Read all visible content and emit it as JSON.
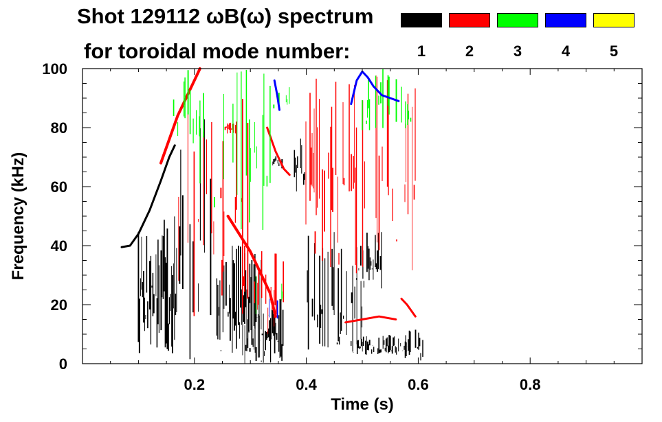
{
  "header": {
    "title_line_1": "Shot 129112 ωB(ω) spectrum",
    "title_line_2": "for toroidal mode number:"
  },
  "legend": [
    {
      "label": "1",
      "color": "#000000"
    },
    {
      "label": "2",
      "color": "#ff0000"
    },
    {
      "label": "3",
      "color": "#00ff00"
    },
    {
      "label": "4",
      "color": "#0000ff"
    },
    {
      "label": "5",
      "color": "#ffff00"
    }
  ],
  "chart_data": {
    "type": "scatter",
    "xlabel": "Time (s)",
    "ylabel": "Frequency (kHz)",
    "xlim": [
      0.0,
      1.0
    ],
    "ylim": [
      0,
      100
    ],
    "x_ticks": [
      0.2,
      0.4,
      0.6,
      0.8
    ],
    "x_tick_labels": [
      "0.2",
      "0.4",
      "0.6",
      "0.8"
    ],
    "y_ticks": [
      0,
      20,
      40,
      60,
      80,
      100
    ],
    "y_tick_labels": [
      "0",
      "20",
      "40",
      "60",
      "80",
      "100"
    ],
    "grid": false,
    "legend_position": "top-right",
    "series": [
      {
        "name": "1",
        "color": "#000000",
        "features": [
          {
            "kind": "trace",
            "width": 3,
            "points": [
              [
                0.07,
                39.5
              ],
              [
                0.085,
                40
              ],
              [
                0.1,
                44
              ],
              [
                0.12,
                52
              ],
              [
                0.14,
                62
              ],
              [
                0.155,
                70
              ],
              [
                0.165,
                74
              ]
            ]
          },
          {
            "kind": "band",
            "t0": 0.1,
            "t1": 0.17,
            "f0": 2,
            "f1": 50,
            "density": 0.9
          },
          {
            "kind": "band",
            "t0": 0.17,
            "t1": 0.23,
            "f0": 0,
            "f1": 85,
            "density": 0.35
          },
          {
            "kind": "band",
            "t0": 0.24,
            "t1": 0.32,
            "f0": 2,
            "f1": 40,
            "density": 0.75
          },
          {
            "kind": "band",
            "t0": 0.29,
            "t1": 0.36,
            "f0": 0,
            "f1": 22,
            "density": 0.95
          },
          {
            "kind": "band",
            "t0": 0.375,
            "t1": 0.4,
            "f0": 55,
            "f1": 78,
            "density": 0.7
          },
          {
            "kind": "band",
            "t0": 0.4,
            "t1": 0.5,
            "f0": 0,
            "f1": 45,
            "density": 0.55
          },
          {
            "kind": "band",
            "t0": 0.49,
            "t1": 0.535,
            "f0": 25,
            "f1": 45,
            "density": 0.75
          },
          {
            "kind": "band",
            "t0": 0.48,
            "t1": 0.58,
            "f0": 3,
            "f1": 10,
            "density": 0.7
          },
          {
            "kind": "band",
            "t0": 0.575,
            "t1": 0.61,
            "f0": 0,
            "f1": 12,
            "density": 0.85
          },
          {
            "kind": "band",
            "t0": 0.34,
            "t1": 0.36,
            "f0": 66,
            "f1": 72,
            "density": 0.8
          }
        ]
      },
      {
        "name": "2",
        "color": "#ff0000",
        "features": [
          {
            "kind": "trace",
            "width": 4,
            "points": [
              [
                0.14,
                68
              ],
              [
                0.155,
                76
              ],
              [
                0.17,
                84
              ],
              [
                0.185,
                90
              ],
              [
                0.2,
                96
              ],
              [
                0.21,
                100
              ]
            ]
          },
          {
            "kind": "trace",
            "width": 4,
            "points": [
              [
                0.26,
                50
              ],
              [
                0.28,
                44
              ],
              [
                0.3,
                38
              ],
              [
                0.32,
                30
              ],
              [
                0.335,
                24
              ],
              [
                0.345,
                16
              ]
            ]
          },
          {
            "kind": "trace",
            "width": 3,
            "points": [
              [
                0.33,
                80
              ],
              [
                0.345,
                72
              ],
              [
                0.36,
                66
              ],
              [
                0.37,
                64
              ]
            ]
          },
          {
            "kind": "trace",
            "width": 3,
            "points": [
              [
                0.47,
                14
              ],
              [
                0.5,
                15
              ],
              [
                0.53,
                16
              ],
              [
                0.56,
                15
              ]
            ]
          },
          {
            "kind": "trace",
            "width": 3,
            "points": [
              [
                0.57,
                22
              ],
              [
                0.58,
                20
              ],
              [
                0.595,
                16
              ]
            ]
          },
          {
            "kind": "band",
            "t0": 0.17,
            "t1": 0.3,
            "f0": 15,
            "f1": 100,
            "density": 0.28
          },
          {
            "kind": "band",
            "t0": 0.39,
            "t1": 0.6,
            "f0": 30,
            "f1": 100,
            "density": 0.45
          },
          {
            "kind": "band",
            "t0": 0.255,
            "t1": 0.275,
            "f0": 78,
            "f1": 82,
            "density": 0.9
          },
          {
            "kind": "band",
            "t0": 0.3,
            "t1": 0.36,
            "f0": 10,
            "f1": 40,
            "density": 0.35
          }
        ]
      },
      {
        "name": "3",
        "color": "#00ff00",
        "features": [
          {
            "kind": "band",
            "t0": 0.15,
            "t1": 0.22,
            "f0": 70,
            "f1": 100,
            "density": 0.28
          },
          {
            "kind": "band",
            "t0": 0.21,
            "t1": 0.34,
            "f0": 45,
            "f1": 100,
            "density": 0.2
          },
          {
            "kind": "band",
            "t0": 0.34,
            "t1": 0.37,
            "f0": 85,
            "f1": 95,
            "density": 0.45
          },
          {
            "kind": "band",
            "t0": 0.5,
            "t1": 0.59,
            "f0": 78,
            "f1": 100,
            "density": 0.35
          },
          {
            "kind": "band",
            "t0": 0.31,
            "t1": 0.36,
            "f0": 15,
            "f1": 30,
            "density": 0.2
          }
        ]
      },
      {
        "name": "4",
        "color": "#0000ff",
        "features": [
          {
            "kind": "trace",
            "width": 3,
            "points": [
              [
                0.48,
                88
              ],
              [
                0.49,
                96
              ],
              [
                0.5,
                99
              ],
              [
                0.51,
                97
              ],
              [
                0.52,
                94
              ],
              [
                0.535,
                91
              ],
              [
                0.55,
                90
              ],
              [
                0.565,
                89
              ]
            ]
          },
          {
            "kind": "trace",
            "width": 3,
            "points": [
              [
                0.343,
                96
              ],
              [
                0.348,
                91
              ],
              [
                0.352,
                86
              ]
            ]
          },
          {
            "kind": "band",
            "t0": 0.33,
            "t1": 0.35,
            "f0": 15,
            "f1": 25,
            "density": 0.2
          }
        ]
      },
      {
        "name": "5",
        "color": "#ffff00",
        "features": []
      }
    ]
  }
}
